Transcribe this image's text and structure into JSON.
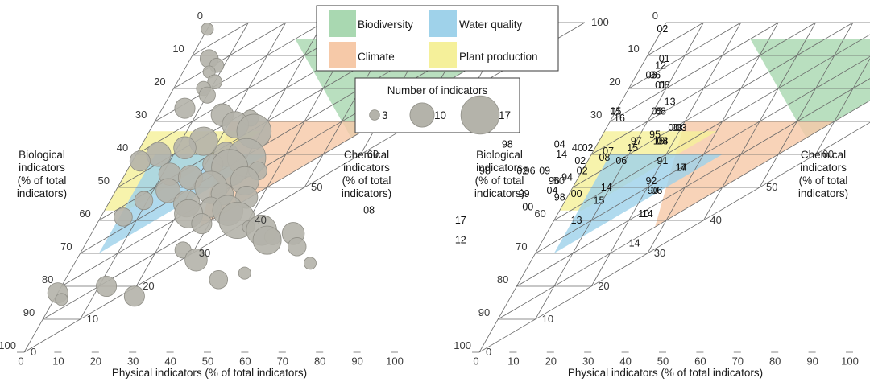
{
  "colors": {
    "biodiversity": "#a9d8b1",
    "water_quality": "#9fd2ea",
    "climate": "#f6c9a8",
    "plant_production": "#f5f09a",
    "bubble_fill": "#b4b3aa",
    "bubble_stroke": "#8f8e86",
    "grid": "#6a6a6a"
  },
  "chart_data": [
    {
      "type": "ternary",
      "title": "",
      "axes": {
        "bottom": {
          "label": "Physical indicators (% of total indicators)",
          "ticks": [
            "0",
            "10",
            "20",
            "30",
            "40",
            "50",
            "60",
            "70",
            "80",
            "90",
            "100"
          ]
        },
        "left": {
          "label_lines": [
            "Biological",
            "indicators",
            "(% of total",
            "indicators)"
          ],
          "ticks": [
            "0",
            "10",
            "20",
            "30",
            "40",
            "50",
            "60",
            "70",
            "80",
            "90",
            "100"
          ]
        },
        "right": {
          "label_lines": [
            "Chemical",
            "indicators",
            "(% of total",
            "indicators)"
          ],
          "ticks": [
            "0",
            "10",
            "20",
            "30",
            "40",
            "50",
            "60",
            "70",
            "80",
            "90",
            "100"
          ]
        }
      },
      "regions": [
        {
          "name": "Biodiversity",
          "color_key": "biodiversity",
          "vertices": [
            [
              5,
              85,
              10
            ],
            [
              5,
              25,
              70
            ],
            [
              35,
              55,
              10
            ]
          ]
        },
        {
          "name": "Climate",
          "color_key": "climate",
          "vertices": [
            [
              30,
              60,
              10
            ],
            [
              30,
              20,
              50
            ],
            [
              62,
              28,
              10
            ]
          ]
        },
        {
          "name": "Plant production",
          "color_key": "plant_production",
          "vertices": [
            [
              33,
              30,
              37
            ],
            [
              33,
              0,
              67
            ],
            [
              57,
              0,
              43
            ],
            [
              57,
              6,
              37
            ]
          ]
        },
        {
          "name": "Water quality",
          "color_key": "water_quality",
          "vertices": [
            [
              40,
              35,
              25
            ],
            [
              40,
              5,
              55
            ],
            [
              70,
              5,
              25
            ]
          ]
        }
      ],
      "points": [
        {
          "bio": 2,
          "phys": 0,
          "chem": 98,
          "n": 4
        },
        {
          "bio": 11,
          "phys": 5,
          "chem": 84,
          "n": 7
        },
        {
          "bio": 13,
          "phys": 8,
          "chem": 79,
          "n": 5
        },
        {
          "bio": 15,
          "phys": 7,
          "chem": 78,
          "n": 4
        },
        {
          "bio": 18,
          "phys": 10,
          "chem": 72,
          "n": 5
        },
        {
          "bio": 20,
          "phys": 8,
          "chem": 72,
          "n": 5
        },
        {
          "bio": 22,
          "phys": 10,
          "chem": 68,
          "n": 6
        },
        {
          "bio": 26,
          "phys": 6,
          "chem": 68,
          "n": 8
        },
        {
          "bio": 28,
          "phys": 17,
          "chem": 55,
          "n": 9
        },
        {
          "bio": 29,
          "phys": 25,
          "chem": 46,
          "n": 6
        },
        {
          "bio": 31,
          "phys": 22,
          "chem": 47,
          "n": 11
        },
        {
          "bio": 33,
          "phys": 28,
          "chem": 39,
          "n": 15
        },
        {
          "bio": 36,
          "phys": 16,
          "chem": 48,
          "n": 12
        },
        {
          "bio": 38,
          "phys": 12,
          "chem": 50,
          "n": 9
        },
        {
          "bio": 40,
          "phys": 6,
          "chem": 54,
          "n": 10
        },
        {
          "bio": 40,
          "phys": 24,
          "chem": 36,
          "n": 10
        },
        {
          "bio": 41,
          "phys": 30,
          "chem": 29,
          "n": 17
        },
        {
          "bio": 42,
          "phys": 2,
          "chem": 56,
          "n": 8
        },
        {
          "bio": 43,
          "phys": 22,
          "chem": 35,
          "n": 8
        },
        {
          "bio": 44,
          "phys": 27,
          "chem": 29,
          "n": 16
        },
        {
          "bio": 45,
          "phys": 35,
          "chem": 20,
          "n": 7
        },
        {
          "bio": 46,
          "phys": 12,
          "chem": 42,
          "n": 9
        },
        {
          "bio": 47,
          "phys": 18,
          "chem": 35,
          "n": 10
        },
        {
          "bio": 48,
          "phys": 33,
          "chem": 19,
          "n": 12
        },
        {
          "bio": 50,
          "phys": 25,
          "chem": 25,
          "n": 14
        },
        {
          "bio": 51,
          "phys": 14,
          "chem": 35,
          "n": 10
        },
        {
          "bio": 52,
          "phys": 29,
          "chem": 19,
          "n": 9
        },
        {
          "bio": 53,
          "phys": 36,
          "chem": 11,
          "n": 9
        },
        {
          "bio": 54,
          "phys": 9,
          "chem": 37,
          "n": 7
        },
        {
          "bio": 55,
          "phys": 21,
          "chem": 24,
          "n": 11
        },
        {
          "bio": 56,
          "phys": 28,
          "chem": 16,
          "n": 8
        },
        {
          "bio": 57,
          "phys": 33,
          "chem": 10,
          "n": 13
        },
        {
          "bio": 58,
          "phys": 23,
          "chem": 19,
          "n": 12
        },
        {
          "bio": 59,
          "phys": 6,
          "chem": 35,
          "n": 7
        },
        {
          "bio": 60,
          "phys": 37,
          "chem": 3,
          "n": 16
        },
        {
          "bio": 61,
          "phys": 28,
          "chem": 11,
          "n": 8
        },
        {
          "bio": 62,
          "phys": 41,
          "chem": -3,
          "n": 4
        },
        {
          "bio": 63,
          "phys": 45,
          "chem": -8,
          "n": 13
        },
        {
          "bio": 64,
          "phys": 54,
          "chem": -18,
          "n": 9
        },
        {
          "bio": 65,
          "phys": 49,
          "chem": -14,
          "n": 6
        },
        {
          "bio": 66,
          "phys": 48,
          "chem": -14,
          "n": 12
        },
        {
          "bio": 68,
          "phys": 57,
          "chem": -25,
          "n": 7
        },
        {
          "bio": 69,
          "phys": 27,
          "chem": 4,
          "n": 6
        },
        {
          "bio": 72,
          "phys": 32,
          "chem": -4,
          "n": 9
        },
        {
          "bio": 73,
          "phys": 63,
          "chem": -36,
          "n": 4
        },
        {
          "bio": 76,
          "phys": 47,
          "chem": -23,
          "n": 4
        },
        {
          "bio": 78,
          "phys": 41,
          "chem": -19,
          "n": 7
        },
        {
          "bio": 80,
          "phys": 12,
          "chem": 8,
          "n": 8
        },
        {
          "bio": 82,
          "phys": 0,
          "chem": 18,
          "n": 8
        },
        {
          "bio": 83,
          "phys": 21,
          "chem": -4,
          "n": 8
        },
        {
          "bio": 84,
          "phys": 2,
          "chem": 14,
          "n": 4
        }
      ]
    },
    {
      "type": "ternary",
      "title": "",
      "axes": {
        "bottom": {
          "label": "Physical indicators (% of total indicators)",
          "ticks": [
            "0",
            "10",
            "20",
            "30",
            "40",
            "50",
            "60",
            "70",
            "80",
            "90",
            "100"
          ]
        },
        "left": {
          "label_lines": [
            "Biological",
            "indicators",
            "(% of total",
            "indicators)"
          ],
          "ticks": [
            "0",
            "10",
            "20",
            "30",
            "40",
            "50",
            "60",
            "70",
            "80",
            "90",
            "100"
          ]
        },
        "right": {
          "label_lines": [
            "Chemical",
            "indicators",
            "(% of total",
            "indicators)"
          ],
          "ticks": [
            "0",
            "10",
            "20",
            "30",
            "40",
            "50",
            "60",
            "70",
            "80",
            "90",
            "100"
          ]
        }
      },
      "regions": [
        {
          "name": "Biodiversity",
          "color_key": "biodiversity",
          "vertices": [
            [
              5,
              85,
              10
            ],
            [
              5,
              25,
              70
            ],
            [
              35,
              55,
              10
            ]
          ]
        },
        {
          "name": "Climate",
          "color_key": "climate",
          "vertices": [
            [
              30,
              60,
              10
            ],
            [
              30,
              20,
              50
            ],
            [
              62,
              28,
              10
            ]
          ]
        },
        {
          "name": "Plant production",
          "color_key": "plant_production",
          "vertices": [
            [
              33,
              30,
              37
            ],
            [
              33,
              0,
              67
            ],
            [
              57,
              0,
              43
            ],
            [
              57,
              6,
              37
            ]
          ]
        },
        {
          "name": "Water quality",
          "color_key": "water_quality",
          "vertices": [
            [
              40,
              35,
              25
            ],
            [
              40,
              5,
              55
            ],
            [
              70,
              5,
              25
            ]
          ]
        }
      ],
      "labeled_points": [
        {
          "label": "02",
          "bio": 2,
          "phys": 0
        },
        {
          "label": "01",
          "bio": 11,
          "phys": 5
        },
        {
          "label": "12",
          "bio": 13,
          "phys": 5
        },
        {
          "label": "06",
          "bio": 16,
          "phys": 4
        },
        {
          "label": "06",
          "bio": 16,
          "phys": 5
        },
        {
          "label": "01",
          "bio": 19,
          "phys": 8
        },
        {
          "label": "08",
          "bio": 19,
          "phys": 9
        },
        {
          "label": "13",
          "bio": 24,
          "phys": 13
        },
        {
          "label": "01",
          "bio": 27,
          "phys": 0
        },
        {
          "label": "15",
          "bio": 27,
          "phys": 0
        },
        {
          "label": "16",
          "bio": 29,
          "phys": 2
        },
        {
          "label": "05",
          "bio": 27,
          "phys": 11
        },
        {
          "label": "08",
          "bio": 27,
          "phys": 12
        },
        {
          "label": "00",
          "bio": 32,
          "phys": 18
        },
        {
          "label": "03",
          "bio": 32,
          "phys": 19
        },
        {
          "label": "03",
          "bio": 32,
          "phys": 20
        },
        {
          "label": "95",
          "bio": 34,
          "phys": 14
        },
        {
          "label": "98",
          "bio": 37,
          "phys": -24
        },
        {
          "label": "04",
          "bio": 37,
          "phys": -10
        },
        {
          "label": "02",
          "bio": 38,
          "phys": -2
        },
        {
          "label": "97",
          "bio": 36,
          "phys": 10
        },
        {
          "label": "15",
          "bio": 36,
          "phys": 16
        },
        {
          "label": "14",
          "bio": 36,
          "phys": 17
        },
        {
          "label": "08",
          "bio": 36,
          "phys": 17
        },
        {
          "label": "15",
          "bio": 38,
          "phys": 10
        },
        {
          "label": "07",
          "bio": 39,
          "phys": 4
        },
        {
          "label": "14",
          "bio": 40,
          "phys": -8
        },
        {
          "label": "02",
          "bio": 42,
          "phys": -2
        },
        {
          "label": "08",
          "bio": 41,
          "phys": 4
        },
        {
          "label": "06",
          "bio": 42,
          "phys": 9
        },
        {
          "label": "91",
          "bio": 42,
          "phys": 20
        },
        {
          "label": "14",
          "bio": 44,
          "phys": 26
        },
        {
          "label": "17",
          "bio": 44,
          "phys": 26
        },
        {
          "label": "98",
          "bio": 45,
          "phys": -26
        },
        {
          "label": "02",
          "bio": 45,
          "phys": -16
        },
        {
          "label": "96",
          "bio": 45,
          "phys": -14
        },
        {
          "label": "09",
          "bio": 45,
          "phys": -10
        },
        {
          "label": "02",
          "bio": 45,
          "phys": 0
        },
        {
          "label": "96",
          "bio": 48,
          "phys": -6
        },
        {
          "label": "94",
          "bio": 47,
          "phys": -3
        },
        {
          "label": "92",
          "bio": 48,
          "phys": 20
        },
        {
          "label": "14",
          "bio": 50,
          "phys": 9
        },
        {
          "label": "04",
          "bio": 51,
          "phys": -5
        },
        {
          "label": "99",
          "bio": 52,
          "phys": -12
        },
        {
          "label": "98",
          "bio": 53,
          "phys": -2
        },
        {
          "label": "00",
          "bio": 52,
          "phys": 2
        },
        {
          "label": "90",
          "bio": 51,
          "phys": 22
        },
        {
          "label": "06",
          "bio": 51,
          "phys": 23
        },
        {
          "label": "15",
          "bio": 54,
          "phys": 9
        },
        {
          "label": "00",
          "bio": 56,
          "phys": -9
        },
        {
          "label": "10",
          "bio": 58,
          "phys": 23
        },
        {
          "label": "14",
          "bio": 58,
          "phys": 24
        },
        {
          "label": "08",
          "bio": 57,
          "phys": -51
        },
        {
          "label": "17",
          "bio": 60,
          "phys": -25
        },
        {
          "label": "13",
          "bio": 60,
          "phys": 6
        },
        {
          "label": "12",
          "bio": 66,
          "phys": -22
        },
        {
          "label": "14",
          "bio": 67,
          "phys": 25
        }
      ]
    }
  ],
  "legend": {
    "items": [
      {
        "label": "Biodiversity",
        "color_key": "biodiversity"
      },
      {
        "label": "Water quality",
        "color_key": "water_quality"
      },
      {
        "label": "Climate",
        "color_key": "climate"
      },
      {
        "label": "Plant production",
        "color_key": "plant_production"
      }
    ],
    "size_title": "Number of indicators",
    "sizes": [
      {
        "label": "3",
        "n": 3
      },
      {
        "label": "10",
        "n": 10
      },
      {
        "label": "17",
        "n": 17
      }
    ]
  }
}
